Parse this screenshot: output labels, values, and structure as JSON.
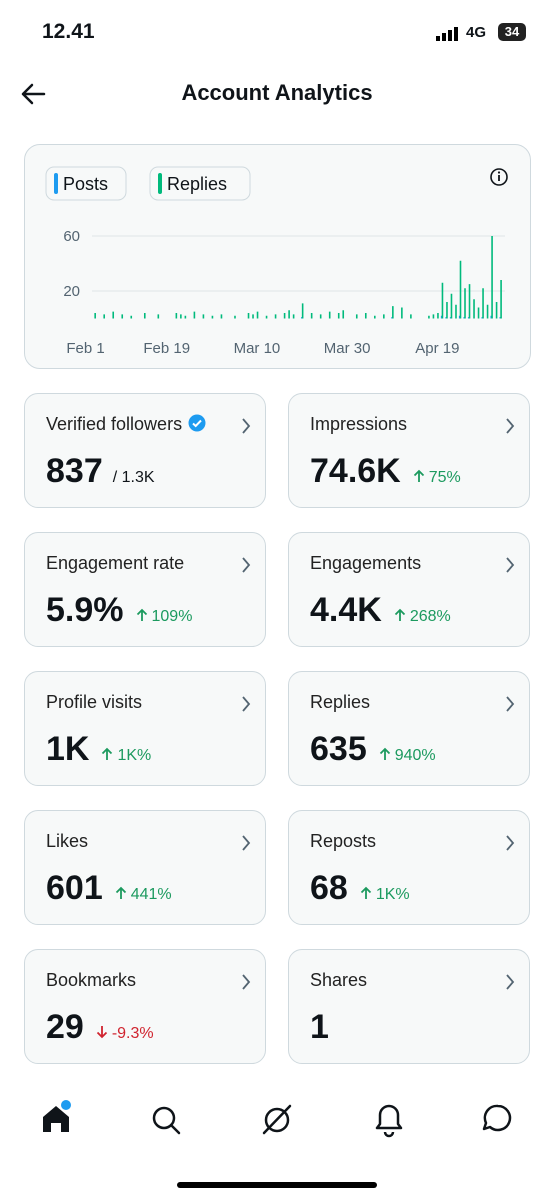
{
  "status_bar": {
    "time": "12.41",
    "network": "4G",
    "battery": "34"
  },
  "header": {
    "title": "Account Analytics"
  },
  "chart_data": {
    "type": "bar",
    "x": [
      2,
      4,
      6,
      8,
      10,
      13,
      16,
      20,
      21,
      22,
      24,
      26,
      28,
      30,
      33,
      36,
      37,
      38,
      40,
      42,
      44,
      45,
      46,
      48,
      50,
      52,
      54,
      56,
      57,
      60,
      62,
      64,
      66,
      68,
      70,
      72,
      76,
      77,
      78,
      79,
      80,
      81,
      82,
      83,
      84,
      85,
      86,
      87,
      88,
      89,
      90,
      91,
      92
    ],
    "series": [
      {
        "name": "Posts",
        "color": "#1d9bf0",
        "values": [
          0,
          0,
          0,
          0,
          0,
          0,
          0,
          0,
          0,
          0,
          0,
          0,
          0,
          0,
          0,
          0,
          0,
          0,
          0,
          0,
          0,
          0,
          0,
          1,
          0,
          0,
          0,
          0,
          0,
          0,
          0,
          0,
          0,
          1,
          0,
          0,
          0,
          0,
          0,
          2,
          1,
          1,
          0,
          2,
          1,
          1,
          0,
          0,
          1,
          0,
          2,
          0,
          1
        ]
      },
      {
        "name": "Replies",
        "color": "#00ba7c",
        "values": [
          4,
          3,
          5,
          3,
          2,
          4,
          3,
          4,
          3,
          2,
          5,
          3,
          2,
          3,
          2,
          4,
          3,
          5,
          2,
          3,
          4,
          6,
          3,
          11,
          4,
          3,
          5,
          4,
          6,
          3,
          4,
          2,
          3,
          9,
          8,
          3,
          2,
          3,
          4,
          26,
          12,
          18,
          10,
          42,
          22,
          25,
          14,
          8,
          22,
          10,
          60,
          12,
          28
        ]
      }
    ],
    "xlim": [
      -5,
      93
    ],
    "xticks": [
      {
        "value": 0,
        "label": "Feb 1"
      },
      {
        "value": 18,
        "label": "Feb 19"
      },
      {
        "value": 38,
        "label": "Mar 10"
      },
      {
        "value": 58,
        "label": "Mar 30"
      },
      {
        "value": 78,
        "label": "Apr 19"
      }
    ],
    "ylim": [
      0,
      66
    ],
    "yticks": [
      20,
      60
    ],
    "grid": true
  },
  "cards": [
    {
      "label": "Verified followers",
      "value": "837",
      "sub": "/ 1.3K",
      "verified": true
    },
    {
      "label": "Impressions",
      "value": "74.6K",
      "change": "75%",
      "trend": "up"
    },
    {
      "label": "Engagement rate",
      "value": "5.9%",
      "change": "109%",
      "trend": "up"
    },
    {
      "label": "Engagements",
      "value": "4.4K",
      "change": "268%",
      "trend": "up"
    },
    {
      "label": "Profile visits",
      "value": "1K",
      "change": "1K%",
      "trend": "up"
    },
    {
      "label": "Replies",
      "value": "635",
      "change": "940%",
      "trend": "up"
    },
    {
      "label": "Likes",
      "value": "601",
      "change": "441%",
      "trend": "up"
    },
    {
      "label": "Reposts",
      "value": "68",
      "change": "1K%",
      "trend": "up"
    },
    {
      "label": "Bookmarks",
      "value": "29",
      "change": "-9.3%",
      "trend": "down"
    },
    {
      "label": "Shares",
      "value": "1"
    }
  ]
}
